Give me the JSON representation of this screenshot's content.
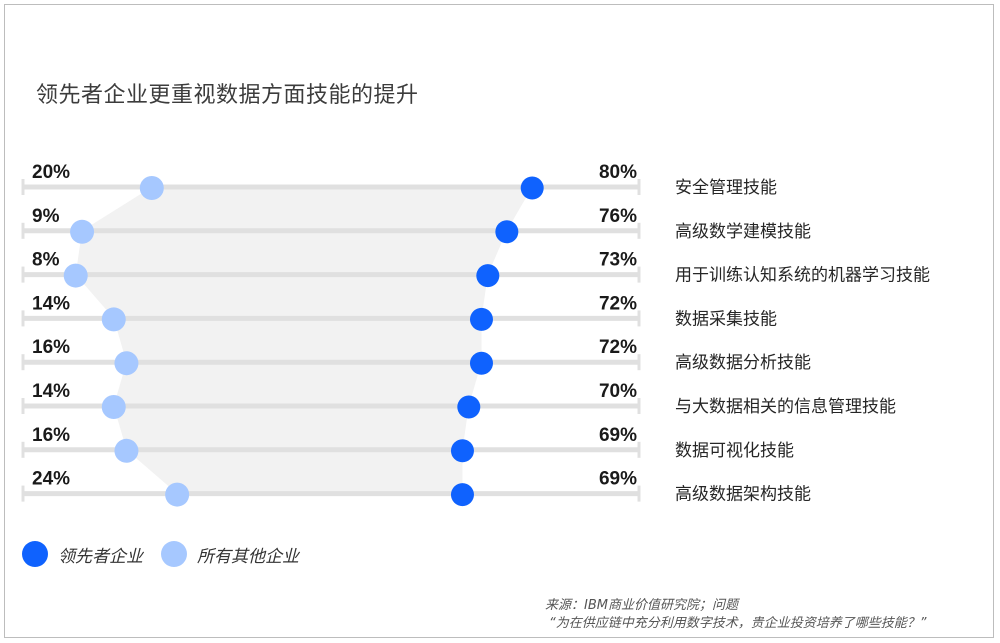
{
  "title": "领先者企业更重视数据方面技能的提升",
  "legend": {
    "leaders": "领先者企业",
    "others": "所有其他企业"
  },
  "source": {
    "line1": "来源：IBM商业价值研究院；问题",
    "line2": "“为在供应链中充分利用数字技术，贵企业投资培养了哪些技能？”"
  },
  "colors": {
    "leaders": "#0f62fe",
    "others": "#a6c8ff",
    "track": "#e0e0e0",
    "band": "#f2f2f2"
  },
  "chart_data": {
    "type": "dot-range",
    "title": "领先者企业更重视数据方面技能的提升",
    "x_range": [
      0,
      100
    ],
    "categories": [
      "安全管理技能",
      "高级数学建模技能",
      "用于训练认知系统的机器学习技能",
      "数据采集技能",
      "高级数据分析技能",
      "与大数据相关的信息管理技能",
      "数据可视化技能",
      "高级数据架构技能"
    ],
    "series": [
      {
        "name": "领先者企业",
        "values": [
          80,
          76,
          73,
          72,
          72,
          70,
          69,
          69
        ]
      },
      {
        "name": "所有其他企业",
        "values": [
          20,
          9,
          8,
          14,
          16,
          14,
          16,
          24
        ]
      }
    ],
    "value_labels_suffix": "%",
    "legend_position": "bottom-left"
  }
}
